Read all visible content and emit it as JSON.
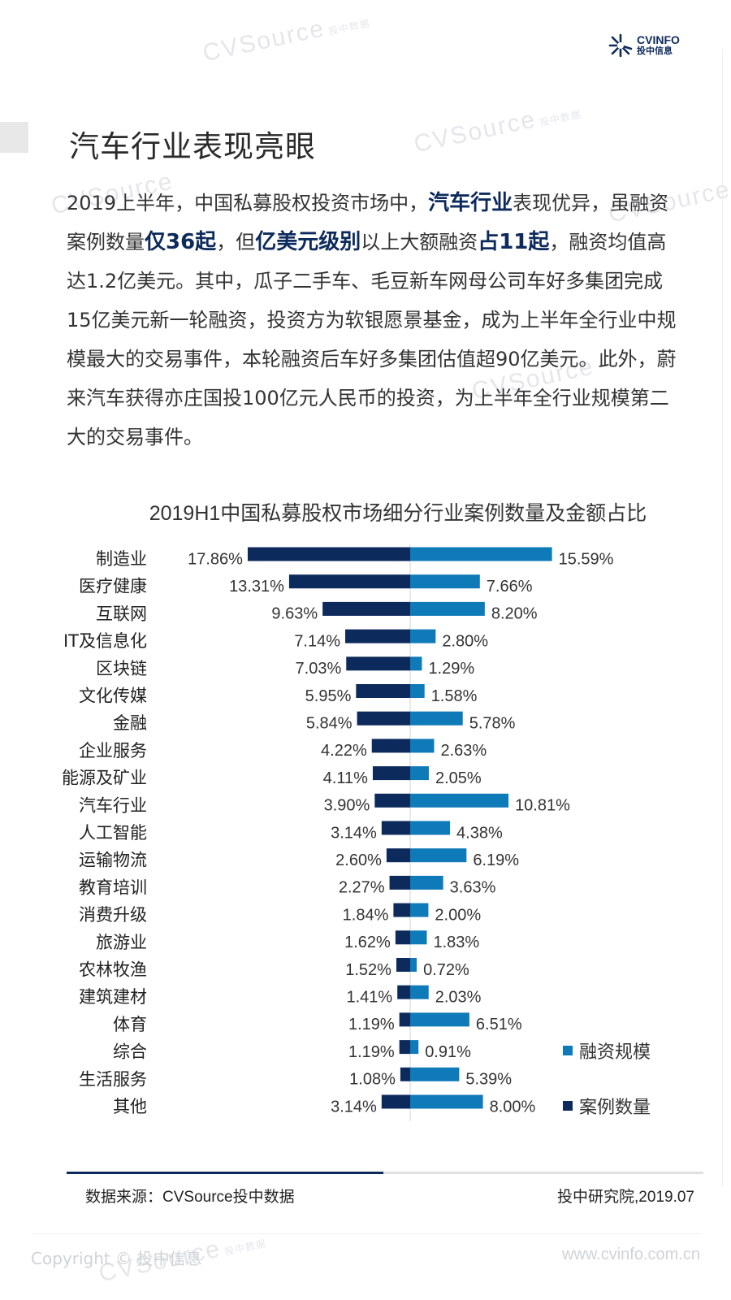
{
  "header": {
    "logo_brand": "CVINFO",
    "logo_sub": "投中信息",
    "watermark": "CVSource",
    "watermark_sub": "投中数据"
  },
  "page_title": "汽车行业表现亮眼",
  "intro": {
    "p1": "2019上半年，中国私募股权投资市场中，",
    "h1": "汽车行业",
    "p2": "表现优异，虽融资案例数量",
    "h2": "仅36起",
    "p3": "，但",
    "h3": "亿美元级别",
    "p4": "以上大额融资",
    "h4": "占11起",
    "p5": "，融资均值高达1.2亿美元。其中，瓜子二手车、毛豆新车网母公司车好多集团完成15亿美元新一轮融资，投资方为软银愿景基金，成为上半年全行业中规模最大的交易事件，本轮融资后车好多集团估值超90亿美元。此外，蔚来汽车获得亦庄国投100亿元人民币的投资，为上半年全行业规模第二大的交易事件。"
  },
  "chart_data": {
    "type": "bar",
    "title": "2019H1中国私募股权市场细分行业案例数量及金额占比",
    "categories": [
      "制造业",
      "医疗健康",
      "互联网",
      "IT及信息化",
      "区块链",
      "文化传媒",
      "金融",
      "企业服务",
      "能源及矿业",
      "汽车行业",
      "人工智能",
      "运输物流",
      "教育培训",
      "消费升级",
      "旅游业",
      "农林牧渔",
      "建筑建材",
      "体育",
      "综合",
      "生活服务",
      "其他"
    ],
    "series": [
      {
        "name": "案例数量",
        "color": "#0d2a5c",
        "values": [
          17.86,
          13.31,
          9.63,
          7.14,
          7.03,
          5.95,
          5.84,
          4.22,
          4.11,
          3.9,
          3.14,
          2.6,
          2.27,
          1.84,
          1.62,
          1.52,
          1.41,
          1.19,
          1.19,
          1.08,
          3.14
        ],
        "labels": [
          "17.86%",
          "13.31%",
          "9.63%",
          "7.14%",
          "7.03%",
          "5.95%",
          "5.84%",
          "4.22%",
          "4.11%",
          "3.90%",
          "3.14%",
          "2.60%",
          "2.27%",
          "1.84%",
          "1.62%",
          "1.52%",
          "1.41%",
          "1.19%",
          "1.19%",
          "1.08%",
          "3.14%"
        ]
      },
      {
        "name": "融资规模",
        "color": "#0f7ab8",
        "values": [
          15.59,
          7.66,
          8.2,
          2.8,
          1.29,
          1.58,
          5.78,
          2.63,
          2.05,
          10.81,
          4.38,
          6.19,
          3.63,
          2.0,
          1.83,
          0.72,
          2.03,
          6.51,
          0.91,
          5.39,
          8.0
        ],
        "labels": [
          "15.59%",
          "7.66%",
          "8.20%",
          "2.80%",
          "1.29%",
          "1.58%",
          "5.78%",
          "2.63%",
          "2.05%",
          "10.81%",
          "4.38%",
          "6.19%",
          "3.63%",
          "2.00%",
          "1.83%",
          "0.72%",
          "2.03%",
          "6.51%",
          "0.91%",
          "5.39%",
          "8.00%"
        ]
      }
    ],
    "legend": [
      "融资规模",
      "案例数量"
    ],
    "legend_position": "right"
  },
  "footer": {
    "source": "数据来源：CVSource投中数据",
    "research": "投中研究院,2019.07",
    "copyright": "Copyright © 投中信息",
    "website": "www.cvinfo.com.cn"
  }
}
